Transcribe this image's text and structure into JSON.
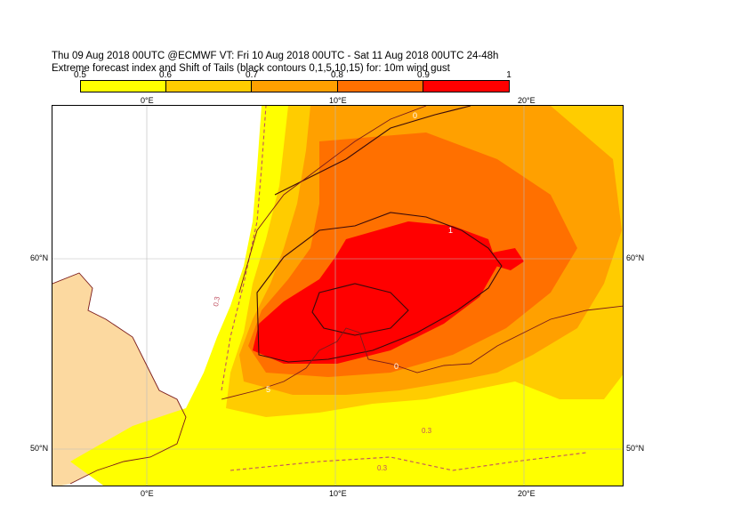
{
  "header": {
    "line1": "Thu 09 Aug 2018 00UTC @ECMWF VT: Fri 10 Aug 2018 00UTC - Sat 11 Aug 2018 00UTC  24-48h",
    "line2": "Extreme forecast index and Shift of Tails (black contours 0,1,5,10,15) for: 10m wind gust"
  },
  "colorbar": {
    "ticks": [
      "0.5",
      "0.6",
      "0.7",
      "0.8",
      "0.9",
      "1"
    ],
    "colors": [
      "#ffff00",
      "#ffcc00",
      "#ffa000",
      "#ff7000",
      "#ff0000"
    ]
  },
  "map": {
    "lon_labels_top": [
      "0°E",
      "10°E",
      "20°E"
    ],
    "lon_labels_bottom": [
      "0°E",
      "10°E",
      "20°E"
    ],
    "lat_labels_left": [
      "60°N",
      "50°N"
    ],
    "lat_labels_right": [
      "60°N",
      "50°N"
    ],
    "contour_labels": [
      "0",
      "1",
      "5",
      "0.3"
    ],
    "colors": {
      "land": "#fcd9a0",
      "sea": "#ffffff",
      "coast": "#7a1a1a",
      "efi_05": "#ffff00",
      "efi_06": "#ffcc00",
      "efi_07": "#ffa000",
      "efi_08": "#ff7000",
      "efi_09": "#ff0000",
      "sot_contour": "#3a0a0a",
      "neg_contour": "#c05060"
    }
  }
}
